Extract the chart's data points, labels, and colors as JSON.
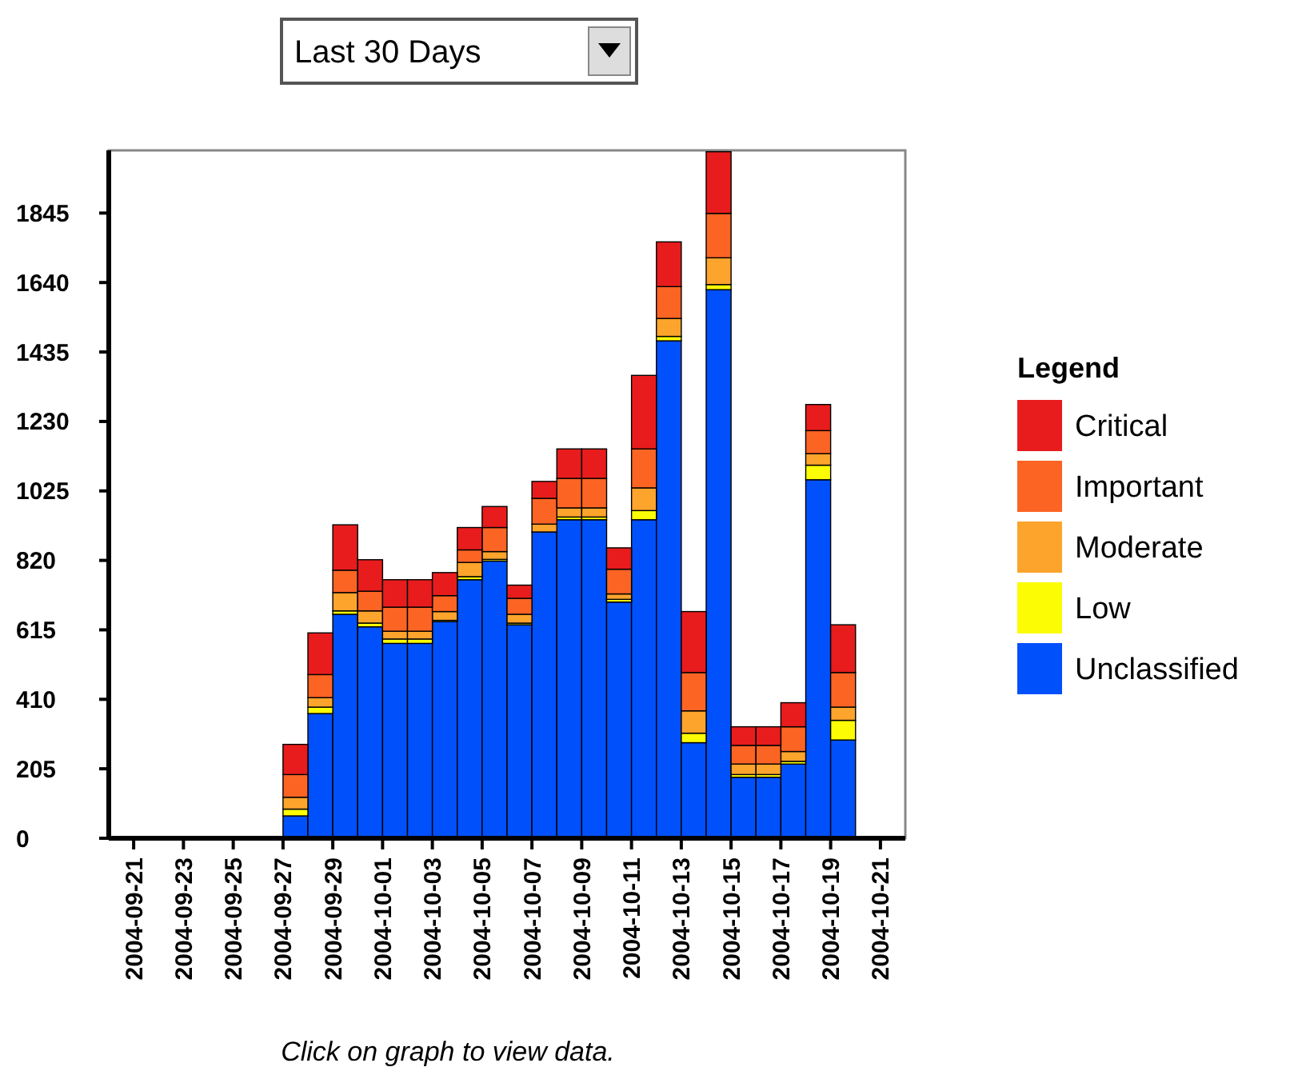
{
  "chart_data": {
    "type": "bar",
    "stacked": true,
    "legend_title": "Legend",
    "legend": "right",
    "grid": false,
    "annotations": [
      "Last 30 Days",
      "Click on graph to view data."
    ],
    "x": [
      "2004-09-27T12:00",
      "2004-09-28T12:00",
      "2004-09-29T12:00",
      "2004-09-30T12:00",
      "2004-10-01T12:00",
      "2004-10-02T12:00",
      "2004-10-03T12:00",
      "2004-10-04T12:00",
      "2004-10-05T12:00",
      "2004-10-06T12:00",
      "2004-10-07T12:00",
      "2004-10-08T12:00",
      "2004-10-09T12:00",
      "2004-10-10T12:00",
      "2004-10-11T12:00",
      "2004-10-12T12:00",
      "2004-10-13T12:00",
      "2004-10-14T12:00",
      "2004-10-15T12:00",
      "2004-10-16T12:00",
      "2004-10-17T12:00",
      "2004-10-18T12:00",
      "2004-10-19T12:00"
    ],
    "xlim": [
      "2004-09-20",
      "2004-10-22"
    ],
    "xticks": [
      "2004-09-21",
      "2004-09-23",
      "2004-09-25",
      "2004-09-27",
      "2004-09-29",
      "2004-10-01",
      "2004-10-03",
      "2004-10-05",
      "2004-10-07",
      "2004-10-09",
      "2004-10-11",
      "2004-10-13",
      "2004-10-15",
      "2004-10-17",
      "2004-10-19",
      "2004-10-21"
    ],
    "ylim": [
      0,
      2030
    ],
    "yticks": [
      0,
      205,
      410,
      615,
      820,
      1025,
      1230,
      1435,
      1640,
      1845
    ],
    "series": [
      {
        "name": "Unclassified",
        "color": "#0050fc",
        "values": [
          66,
          368,
          661,
          624,
          575,
          575,
          639,
          763,
          818,
          630,
          904,
          940,
          940,
          697,
          940,
          1468,
          282,
          1619,
          180,
          180,
          219,
          1058,
          290
        ]
      },
      {
        "name": "Low",
        "color": "#fcfc04",
        "values": [
          20,
          19,
          10,
          11,
          13,
          13,
          4,
          9,
          5,
          5,
          null,
          8,
          8,
          8,
          27,
          13,
          28,
          15,
          8,
          8,
          8,
          43,
          58
        ]
      },
      {
        "name": "Moderate",
        "color": "#fca42c",
        "values": [
          35,
          28,
          54,
          36,
          23,
          23,
          26,
          42,
          23,
          26,
          23,
          27,
          27,
          16,
          67,
          53,
          66,
          79,
          31,
          31,
          29,
          34,
          39
        ]
      },
      {
        "name": "Important",
        "color": "#fc6424",
        "values": [
          67,
          68,
          66,
          58,
          71,
          71,
          47,
          37,
          71,
          47,
          76,
          87,
          87,
          73,
          115,
          94,
          113,
          131,
          55,
          55,
          73,
          68,
          102
        ]
      },
      {
        "name": "Critical",
        "color": "#e81c1c",
        "values": [
          89,
          123,
          134,
          93,
          81,
          81,
          68,
          66,
          62,
          39,
          50,
          87,
          87,
          63,
          217,
          132,
          180,
          182,
          55,
          55,
          71,
          77,
          141
        ]
      }
    ]
  }
}
